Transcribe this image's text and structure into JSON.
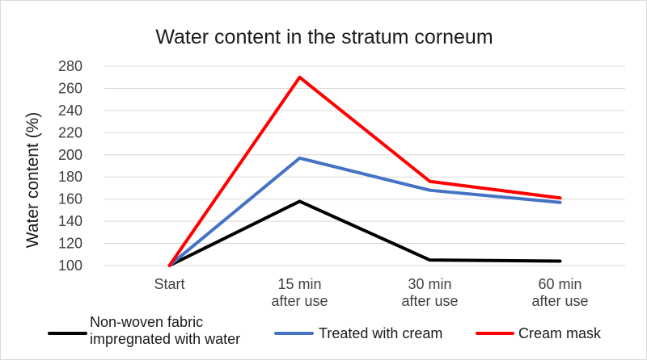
{
  "chart_data": {
    "type": "line",
    "title": "Water content in the stratum corneum",
    "ylabel": "Water content (%)",
    "xlabel": "",
    "categories": [
      [
        "Start"
      ],
      [
        "15 min",
        "after use"
      ],
      [
        "30 min",
        "after use"
      ],
      [
        "60 min",
        "after use"
      ]
    ],
    "ylim": [
      100,
      280
    ],
    "yticks": [
      100,
      120,
      140,
      160,
      180,
      200,
      220,
      240,
      260,
      280
    ],
    "grid": true,
    "legend_position": "bottom",
    "series": [
      {
        "name": "Non-woven fabric impregnated with water",
        "legend_lines": [
          "Non-woven fabric",
          "impregnated with water"
        ],
        "color": "#000000",
        "values": [
          100,
          158,
          105,
          104
        ]
      },
      {
        "name": "Treated with cream",
        "legend_lines": [
          "Treated with cream"
        ],
        "color": "#4472c4",
        "values": [
          100,
          197,
          168,
          157
        ]
      },
      {
        "name": "Cream mask",
        "legend_lines": [
          "Cream mask"
        ],
        "color": "#ff0000",
        "values": [
          100,
          270,
          176,
          161
        ]
      }
    ]
  }
}
